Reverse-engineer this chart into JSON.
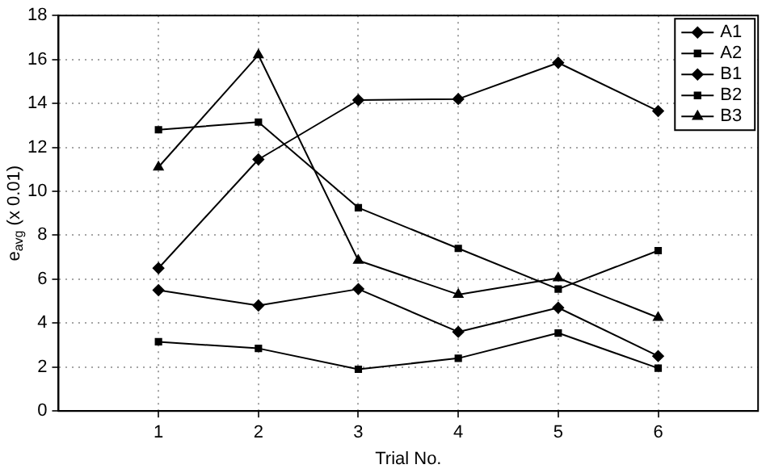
{
  "chart_data": {
    "type": "line",
    "xlabel": "Trial No.",
    "ylabel": "e$_{avg}$ (x 0.01)",
    "x": [
      1,
      2,
      3,
      4,
      5,
      6
    ],
    "series": [
      {
        "name": "A1",
        "color": "#000000",
        "marker": "diamond",
        "values": [
          5.5,
          4.8,
          5.55,
          3.6,
          4.7,
          2.5
        ]
      },
      {
        "name": "A2",
        "color": "#000000",
        "marker": "square",
        "values": [
          3.15,
          2.85,
          1.9,
          2.4,
          3.55,
          1.95
        ]
      },
      {
        "name": "B1",
        "color": "#000000",
        "marker": "diamond",
        "values": [
          6.5,
          11.45,
          14.15,
          14.2,
          15.85,
          13.65
        ]
      },
      {
        "name": "B2",
        "color": "#000000",
        "marker": "square",
        "values": [
          12.8,
          13.15,
          9.25,
          7.4,
          5.55,
          7.3
        ]
      },
      {
        "name": "B3",
        "color": "#000000",
        "marker": "triangle",
        "values": [
          11.1,
          16.2,
          6.85,
          5.3,
          6.05,
          4.25
        ]
      }
    ],
    "xlim": [
      0,
      7
    ],
    "xticks": [
      1,
      2,
      3,
      4,
      5,
      6
    ],
    "ylim": [
      0,
      18
    ],
    "yticks": [
      0,
      2,
      4,
      6,
      8,
      10,
      12,
      14,
      16,
      18
    ],
    "grid": true,
    "legend": "top right",
    "line_style": "solid"
  }
}
